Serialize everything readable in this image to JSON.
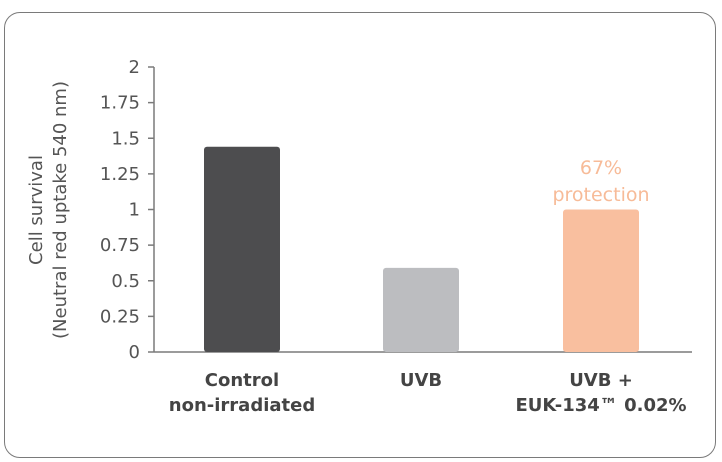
{
  "chart_data": {
    "type": "bar",
    "ylabel_line1": "Cell survival",
    "ylabel_line2": "(Neutral red uptake 540 nm)",
    "ylim": [
      0,
      2
    ],
    "yticks": [
      "0",
      "0.25",
      "0.5",
      "0.75",
      "1",
      "1.25",
      "1.5",
      "1.75",
      "2"
    ],
    "ytick_values": [
      0,
      0.25,
      0.5,
      0.75,
      1,
      1.25,
      1.5,
      1.75,
      2
    ],
    "categories": [
      {
        "line1": "Control",
        "line2": "non-irradiated"
      },
      {
        "line1": "UVB",
        "line2": ""
      },
      {
        "line1": "UVB +",
        "line2": "EUK-134™ 0.02%"
      }
    ],
    "values": [
      1.44,
      0.59,
      1.0
    ],
    "colors": [
      "#4d4d4f",
      "#bcbdc0",
      "#f9bf9f"
    ],
    "annotation": {
      "line1": "67%",
      "line2": "protection",
      "color": "#f7bb98"
    },
    "grid": false
  }
}
